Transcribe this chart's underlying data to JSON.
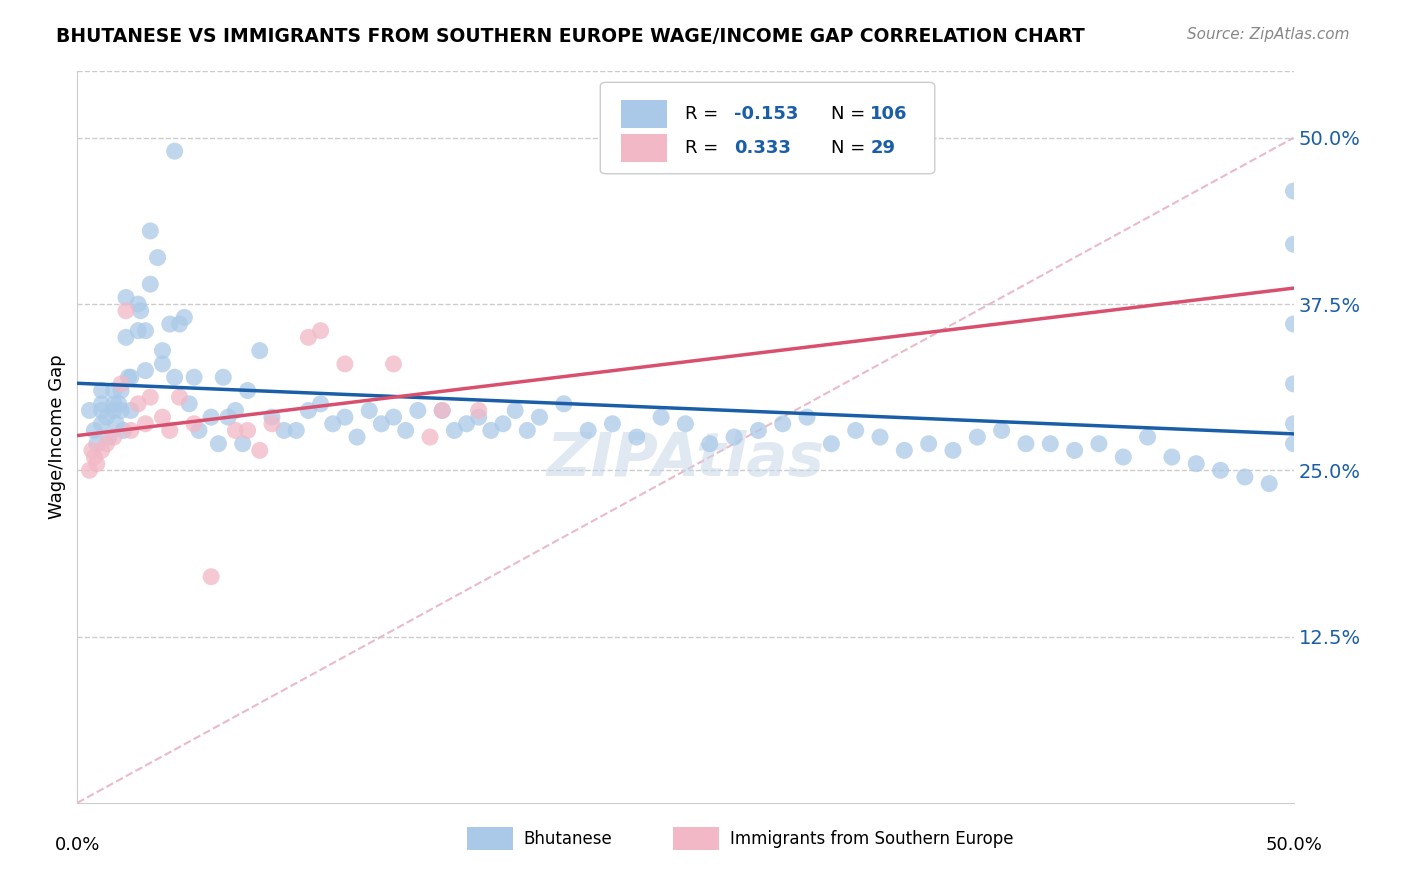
{
  "title": "BHUTANESE VS IMMIGRANTS FROM SOUTHERN EUROPE WAGE/INCOME GAP CORRELATION CHART",
  "source": "Source: ZipAtlas.com",
  "ylabel": "Wage/Income Gap",
  "yticks": [
    0.125,
    0.25,
    0.375,
    0.5
  ],
  "ytick_labels": [
    "12.5%",
    "25.0%",
    "37.5%",
    "50.0%"
  ],
  "xlim": [
    0.0,
    0.5
  ],
  "ylim": [
    0.0,
    0.55
  ],
  "blue_color": "#aac9e8",
  "pink_color": "#f2b8c6",
  "blue_line_color": "#1a5ea8",
  "pink_line_color": "#d94f6e",
  "dashed_line_color": "#e8b4c0",
  "grid_color": "#cccccc",
  "blue_scatter": {
    "x": [
      0.005,
      0.007,
      0.008,
      0.01,
      0.01,
      0.01,
      0.01,
      0.012,
      0.013,
      0.015,
      0.015,
      0.015,
      0.016,
      0.017,
      0.018,
      0.018,
      0.019,
      0.02,
      0.02,
      0.021,
      0.022,
      0.022,
      0.025,
      0.025,
      0.026,
      0.028,
      0.028,
      0.03,
      0.03,
      0.033,
      0.035,
      0.035,
      0.038,
      0.04,
      0.04,
      0.042,
      0.044,
      0.046,
      0.048,
      0.05,
      0.055,
      0.058,
      0.06,
      0.062,
      0.065,
      0.068,
      0.07,
      0.075,
      0.08,
      0.085,
      0.09,
      0.095,
      0.1,
      0.105,
      0.11,
      0.115,
      0.12,
      0.125,
      0.13,
      0.135,
      0.14,
      0.15,
      0.155,
      0.16,
      0.165,
      0.17,
      0.175,
      0.18,
      0.185,
      0.19,
      0.2,
      0.21,
      0.22,
      0.23,
      0.24,
      0.25,
      0.26,
      0.27,
      0.28,
      0.29,
      0.3,
      0.31,
      0.32,
      0.33,
      0.34,
      0.35,
      0.36,
      0.37,
      0.38,
      0.39,
      0.4,
      0.41,
      0.42,
      0.43,
      0.44,
      0.45,
      0.46,
      0.47,
      0.48,
      0.49,
      0.5,
      0.5,
      0.5,
      0.5,
      0.5,
      0.5
    ],
    "y": [
      0.295,
      0.28,
      0.27,
      0.285,
      0.295,
      0.3,
      0.31,
      0.29,
      0.275,
      0.31,
      0.3,
      0.295,
      0.285,
      0.3,
      0.31,
      0.295,
      0.28,
      0.35,
      0.38,
      0.32,
      0.295,
      0.32,
      0.375,
      0.355,
      0.37,
      0.325,
      0.355,
      0.43,
      0.39,
      0.41,
      0.34,
      0.33,
      0.36,
      0.49,
      0.32,
      0.36,
      0.365,
      0.3,
      0.32,
      0.28,
      0.29,
      0.27,
      0.32,
      0.29,
      0.295,
      0.27,
      0.31,
      0.34,
      0.29,
      0.28,
      0.28,
      0.295,
      0.3,
      0.285,
      0.29,
      0.275,
      0.295,
      0.285,
      0.29,
      0.28,
      0.295,
      0.295,
      0.28,
      0.285,
      0.29,
      0.28,
      0.285,
      0.295,
      0.28,
      0.29,
      0.3,
      0.28,
      0.285,
      0.275,
      0.29,
      0.285,
      0.27,
      0.275,
      0.28,
      0.285,
      0.29,
      0.27,
      0.28,
      0.275,
      0.265,
      0.27,
      0.265,
      0.275,
      0.28,
      0.27,
      0.27,
      0.265,
      0.27,
      0.26,
      0.275,
      0.26,
      0.255,
      0.25,
      0.245,
      0.24,
      0.46,
      0.42,
      0.36,
      0.315,
      0.285,
      0.27
    ]
  },
  "pink_scatter": {
    "x": [
      0.005,
      0.006,
      0.007,
      0.008,
      0.01,
      0.012,
      0.015,
      0.018,
      0.02,
      0.022,
      0.025,
      0.028,
      0.03,
      0.035,
      0.038,
      0.042,
      0.048,
      0.055,
      0.065,
      0.07,
      0.075,
      0.08,
      0.095,
      0.1,
      0.11,
      0.13,
      0.145,
      0.15,
      0.165
    ],
    "y": [
      0.25,
      0.265,
      0.26,
      0.255,
      0.265,
      0.27,
      0.275,
      0.315,
      0.37,
      0.28,
      0.3,
      0.285,
      0.305,
      0.29,
      0.28,
      0.305,
      0.285,
      0.17,
      0.28,
      0.28,
      0.265,
      0.285,
      0.35,
      0.355,
      0.33,
      0.33,
      0.275,
      0.295,
      0.295
    ]
  },
  "legend_text": {
    "blue_R": "-0.153",
    "blue_N": "106",
    "pink_R": "0.333",
    "pink_N": "29"
  }
}
